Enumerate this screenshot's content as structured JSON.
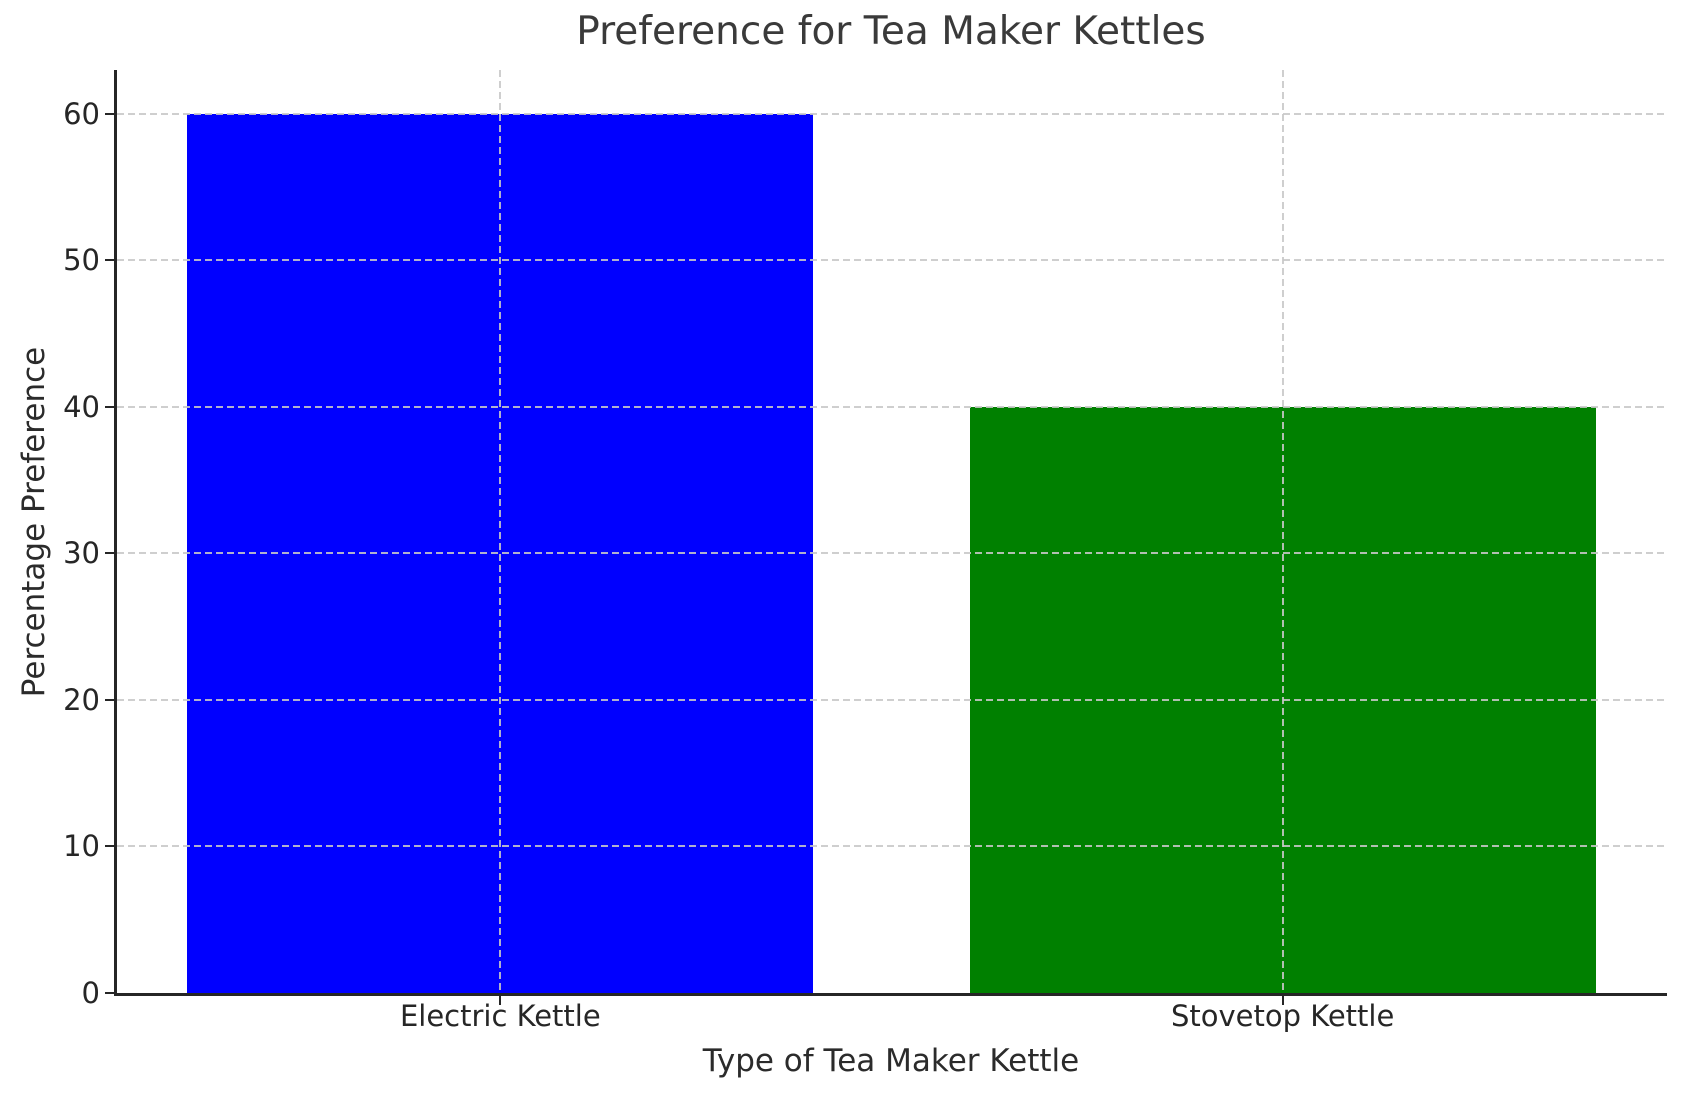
{
  "chart_data": {
    "type": "bar",
    "title": "Preference for Tea Maker Kettles",
    "xlabel": "Type of Tea Maker Kettle",
    "ylabel": "Percentage Preference",
    "categories": [
      "Electric Kettle",
      "Stovetop Kettle"
    ],
    "values": [
      60,
      40
    ],
    "bar_colors": [
      "#0000ff",
      "#008000"
    ],
    "yticks": [
      0,
      10,
      20,
      30,
      40,
      50,
      60
    ],
    "ylim": [
      0,
      63
    ],
    "grid": {
      "style": "dashed",
      "axes": "both",
      "color": "#c8c8c8",
      "drawn_above_bars": true
    },
    "legend": "none",
    "background_color": "#ffffff",
    "spine_color": "#262626",
    "title_color": "#3a3a3a"
  }
}
